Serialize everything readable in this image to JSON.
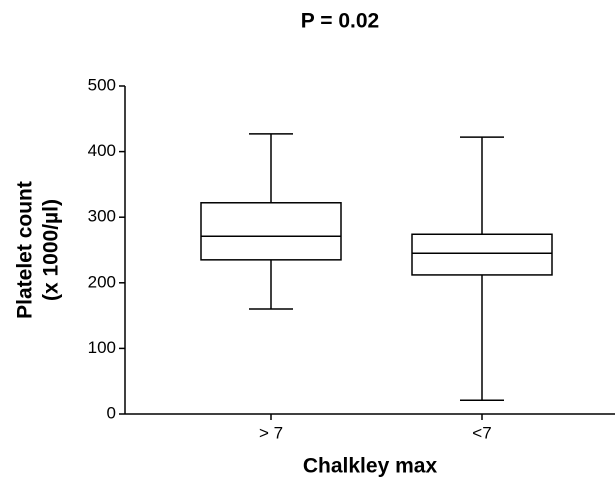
{
  "chart_data": {
    "type": "box",
    "title": "P = 0.02",
    "ylabel": [
      "Platelet count",
      "(x 1000/µl)"
    ],
    "xlabel": "Chalkley max",
    "categories": [
      "> 7",
      "<7"
    ],
    "boxes": [
      {
        "min": 160,
        "q1": 235,
        "median": 271,
        "q3": 322,
        "max": 427
      },
      {
        "min": 21,
        "q1": 212,
        "median": 245,
        "q3": 274,
        "max": 422
      }
    ],
    "color": "#000000",
    "ylim": [
      0,
      500
    ],
    "yticks": [
      0,
      100,
      200,
      300,
      400,
      500
    ]
  }
}
